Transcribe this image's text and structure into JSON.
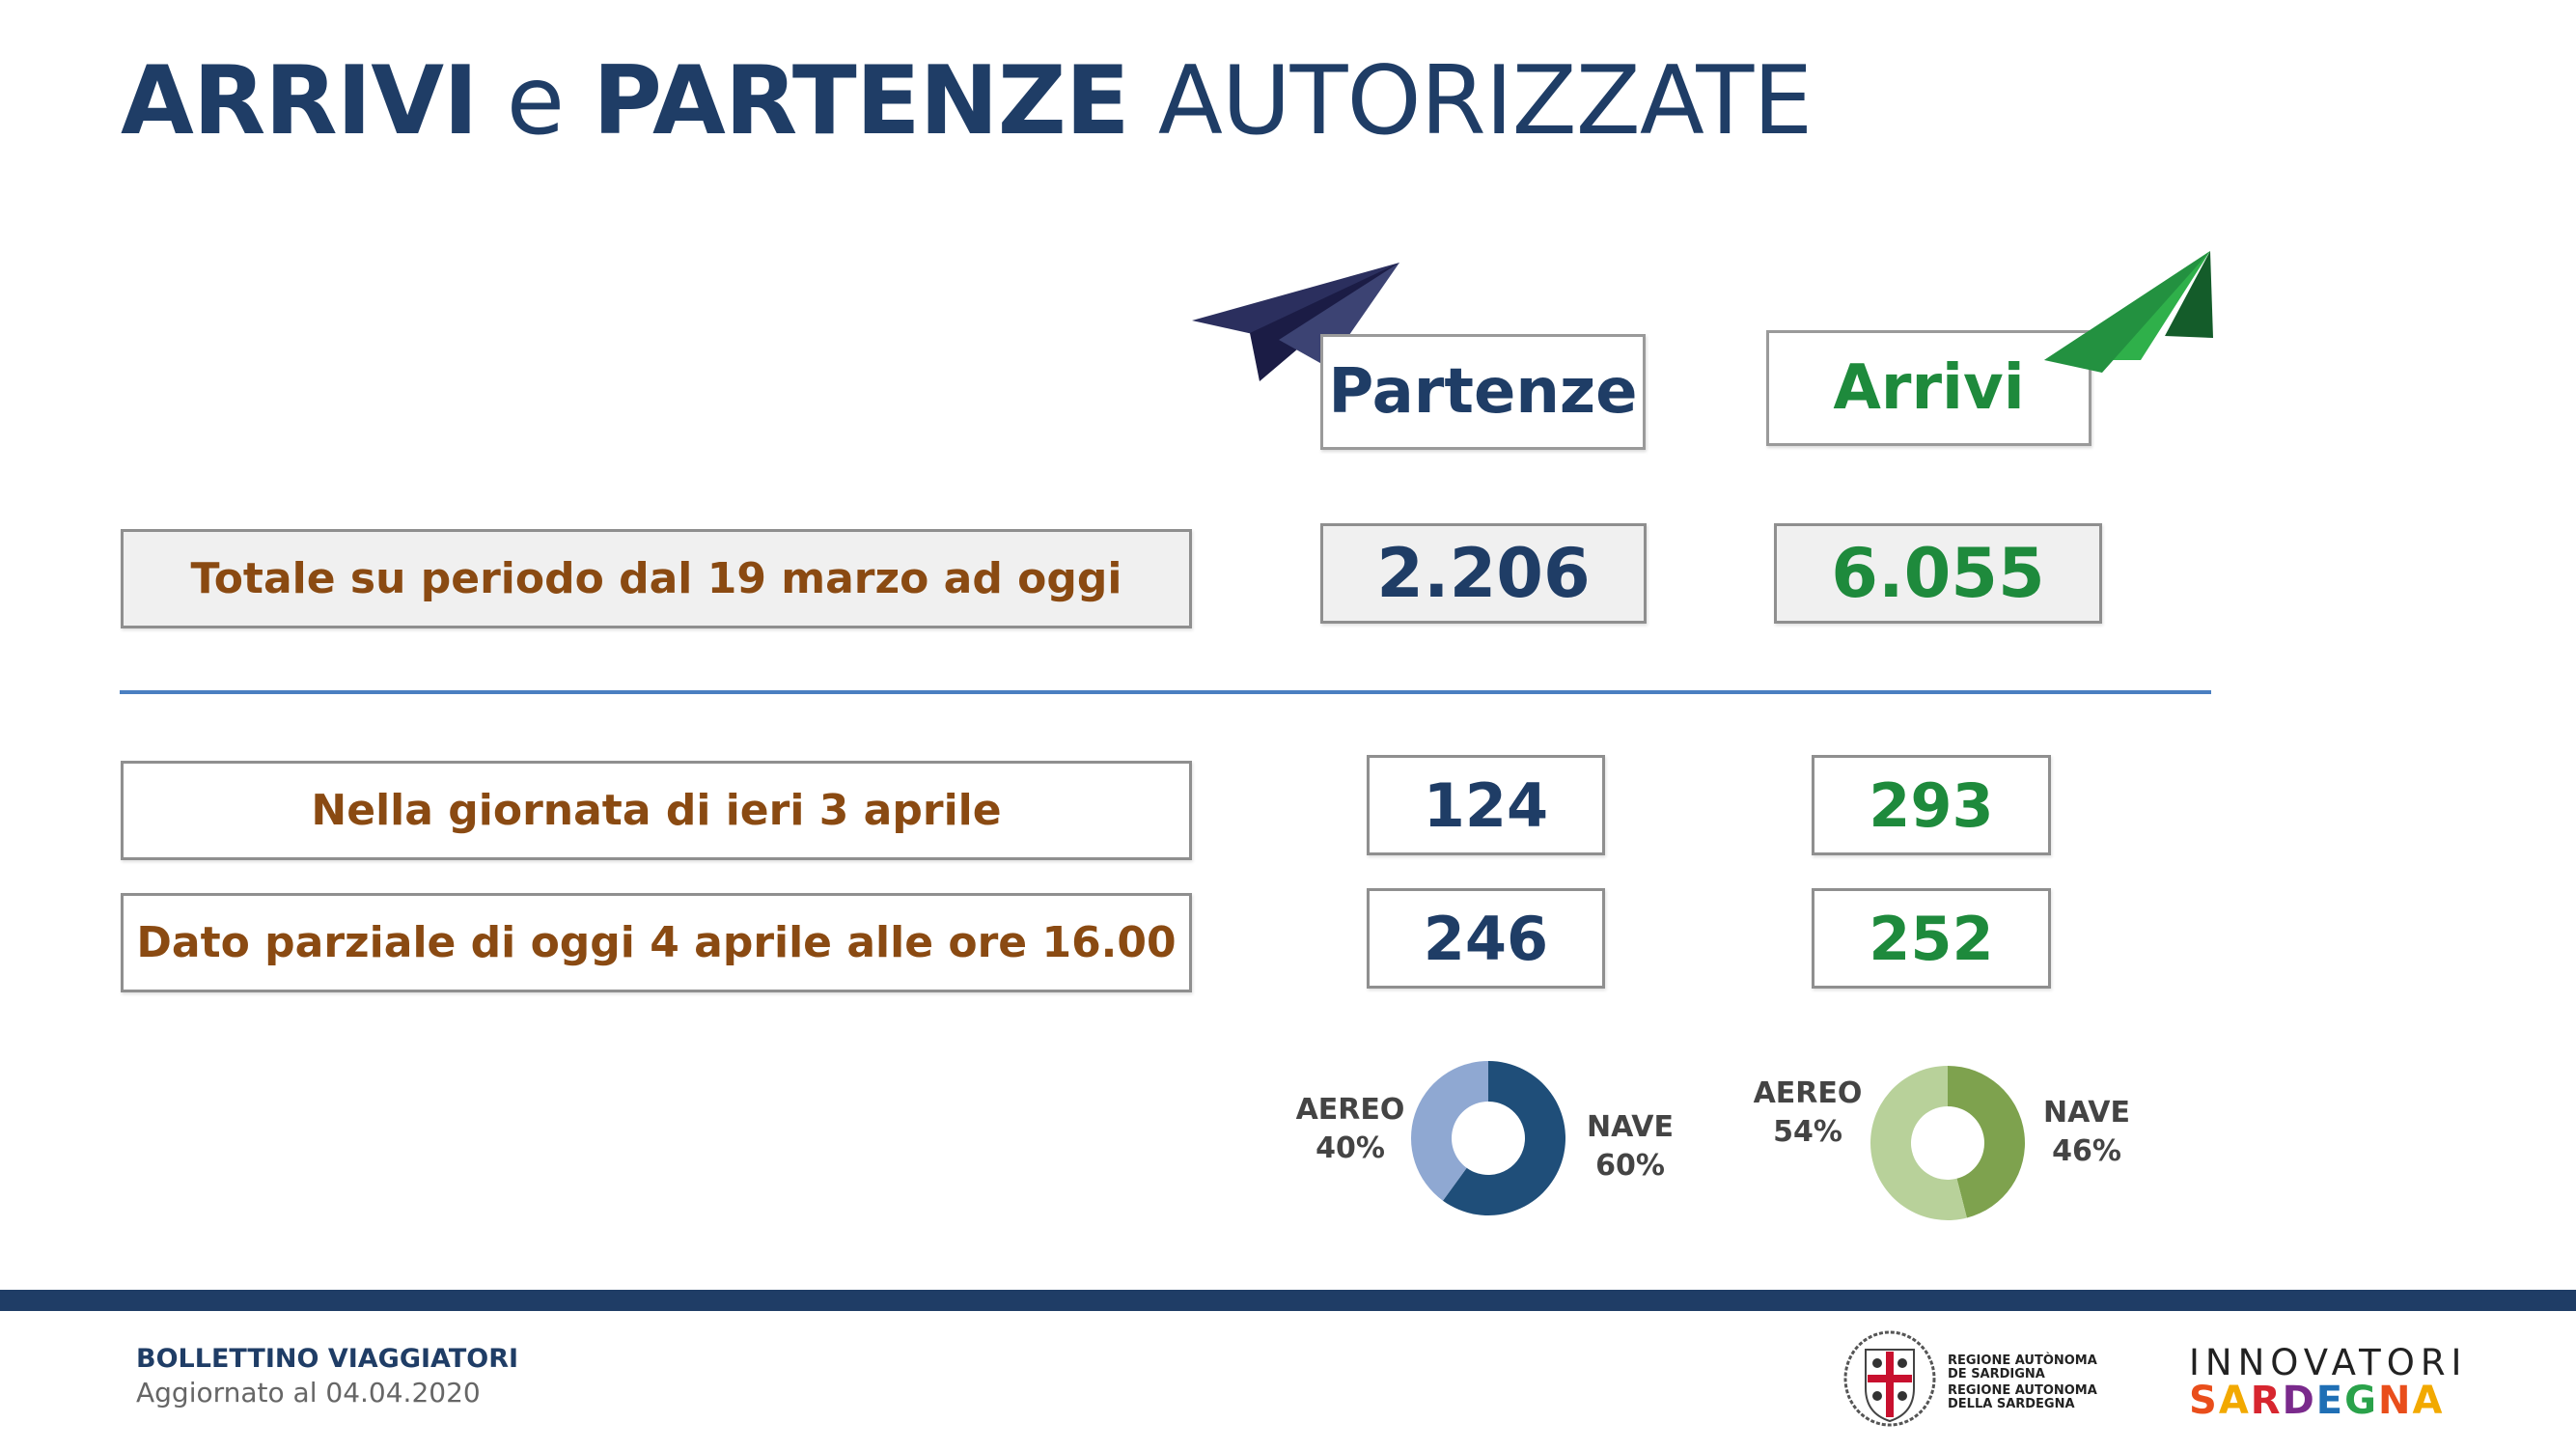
{
  "title": {
    "part1": "ARRIVI",
    "part2": "e",
    "part3": "PARTENZE",
    "part4": "AUTORIZZATE"
  },
  "columns": {
    "partenze": "Partenze",
    "arrivi": "Arrivi"
  },
  "rows": [
    {
      "label": "Totale su periodo dal 19 marzo ad oggi",
      "partenze": "2.206",
      "arrivi": "6.055"
    },
    {
      "label": "Nella giornata di ieri 3 aprile",
      "partenze": "124",
      "arrivi": "293"
    },
    {
      "label": "Dato parziale di oggi 4 aprile alle ore 16.00",
      "partenze": "246",
      "arrivi": "252"
    }
  ],
  "chart_data": [
    {
      "type": "pie",
      "title": "",
      "categories": [
        "AEREO",
        "NAVE"
      ],
      "values": [
        40,
        60
      ],
      "labels": [
        "40%",
        "60%"
      ],
      "colors": [
        "#8fa8d2",
        "#1f4e79"
      ]
    },
    {
      "type": "pie",
      "title": "",
      "categories": [
        "AEREO",
        "NAVE"
      ],
      "values": [
        54,
        46
      ],
      "labels": [
        "54%",
        "46%"
      ],
      "colors": [
        "#b8d19a",
        "#7ea24e"
      ]
    }
  ],
  "footer": {
    "bulletin": "BOLLETTINO VIAGGIATORI",
    "updated": "Aggiornato al 04.04.2020",
    "region_line1": "REGIONE AUTÒNOMA",
    "region_line2": "DE SARDIGNA",
    "region_line3": "REGIONE AUTONOMA",
    "region_line4": "DELLA SARDEGNA",
    "brand_top": "INNOVATORI",
    "brand_bottom": "SARDEGNA"
  },
  "colors": {
    "navy": "#1f3d66",
    "green": "#1e8a3c",
    "brown": "#8a4a12",
    "divider": "#4a7fc1"
  },
  "icons": {
    "partenze": "paper-plane-icon",
    "arrivi": "paper-plane-icon"
  }
}
